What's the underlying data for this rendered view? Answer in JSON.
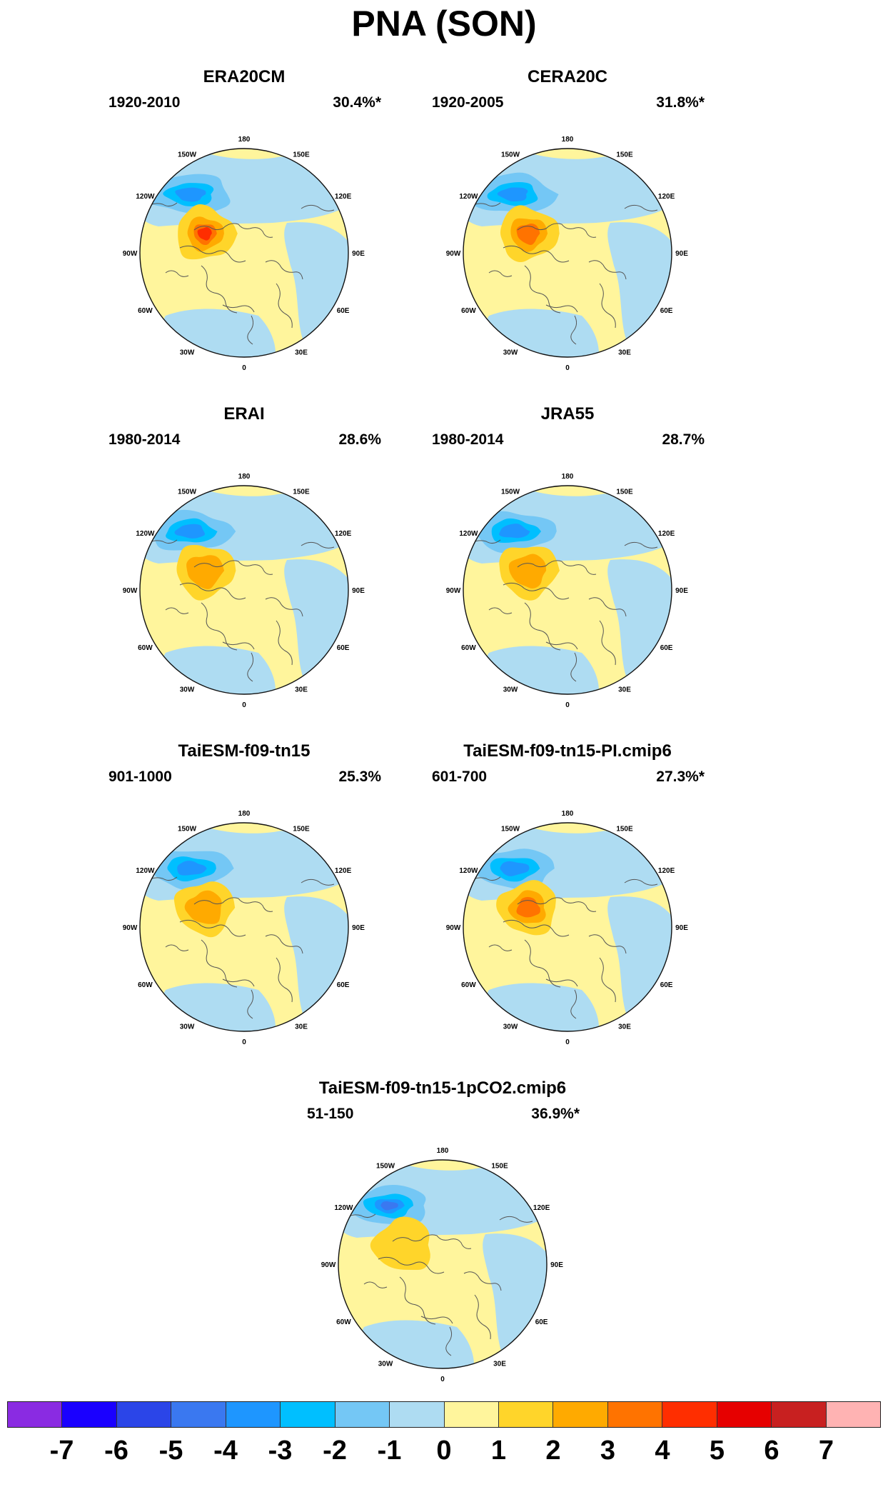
{
  "title": "PNA (SON)",
  "lon_labels": [
    "180",
    "150E",
    "120E",
    "90E",
    "60E",
    "30E",
    "0",
    "30W",
    "60W",
    "90W",
    "120W",
    "150W"
  ],
  "panels": [
    {
      "title": "ERA20CM",
      "period": "1920-2010",
      "variance": "30.4%*",
      "blue_strength": -3,
      "orange_strength": 4
    },
    {
      "title": "CERA20C",
      "period": "1920-2005",
      "variance": "31.8%*",
      "blue_strength": -3,
      "orange_strength": 3
    },
    {
      "title": "ERAI",
      "period": "1980-2014",
      "variance": "28.6%",
      "blue_strength": -3,
      "orange_strength": 2
    },
    {
      "title": "JRA55",
      "period": "1980-2014",
      "variance": "28.7%",
      "blue_strength": -3,
      "orange_strength": 2
    },
    {
      "title": "TaiESM-f09-tn15",
      "period": "901-1000",
      "variance": "25.3%",
      "blue_strength": -3,
      "orange_strength": 2
    },
    {
      "title": "TaiESM-f09-tn15-PI.cmip6",
      "period": "601-700",
      "variance": "27.3%*",
      "blue_strength": -3,
      "orange_strength": 3
    },
    {
      "title": "TaiESM-f09-tn15-1pCO2.cmip6",
      "period": "51-150",
      "variance": "36.9%*",
      "blue_strength": -4,
      "orange_strength": 1
    }
  ],
  "colorbar": {
    "labels": [
      "-7",
      "-6",
      "-5",
      "-4",
      "-3",
      "-2",
      "-1",
      "0",
      "1",
      "2",
      "3",
      "4",
      "5",
      "6",
      "7"
    ],
    "colors": [
      "#8a2be2",
      "#1a00ff",
      "#2b45e8",
      "#3a78f0",
      "#1e96ff",
      "#00bfff",
      "#74c7f5",
      "#aedcf2",
      "#fff59c",
      "#ffd52a",
      "#ffaa00",
      "#ff7300",
      "#ff2e00",
      "#e60000",
      "#c82020",
      "#ffb3b3"
    ]
  }
}
